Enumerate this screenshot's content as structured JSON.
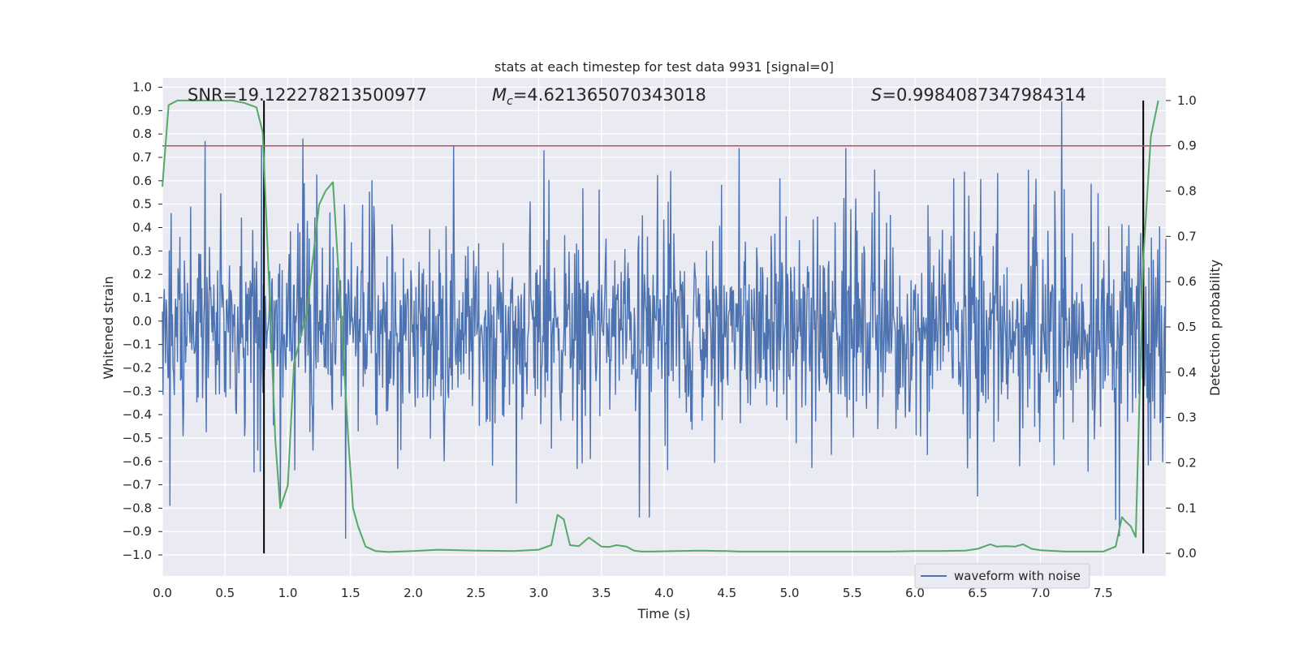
{
  "chart_data": {
    "type": "line",
    "title": "stats at each timestep for test data 9931 [signal=0]",
    "xlabel": "Time (s)",
    "ylabel": "Whitened strain",
    "y2label": "Detection probability",
    "xlim": [
      0.0,
      8.0
    ],
    "ylim": [
      -1.09,
      1.04
    ],
    "y2lim": [
      -0.05,
      1.05
    ],
    "x_ticks": [
      "0.0",
      "0.5",
      "1.0",
      "1.5",
      "2.0",
      "2.5",
      "3.0",
      "3.5",
      "4.0",
      "4.5",
      "5.0",
      "5.5",
      "6.0",
      "6.5",
      "7.0",
      "7.5"
    ],
    "y_ticks": [
      "1.0",
      "0.9",
      "0.8",
      "0.7",
      "0.6",
      "0.5",
      "0.4",
      "0.3",
      "0.2",
      "0.1",
      "0.0",
      "-0.1",
      "-0.2",
      "-0.3",
      "-0.4",
      "-0.5",
      "-0.6",
      "-0.7",
      "-0.8",
      "-0.9",
      "-1.0"
    ],
    "y2_ticks": [
      "1.0",
      "0.9",
      "0.8",
      "0.7",
      "0.6",
      "0.5",
      "0.4",
      "0.3",
      "0.2",
      "0.1",
      "0.0"
    ],
    "grid": true,
    "legend_position": "lower-right",
    "annotations": {
      "snr": "SNR=19.122278213500977",
      "mc_symbol": "M",
      "mc_sub": "c",
      "mc_value": "=4.621365070343018",
      "s_symbol": "S",
      "s_value": "=0.9984087347984314"
    },
    "threshold": {
      "value": 0.9,
      "axis": "right",
      "color": "#c44e52"
    },
    "vertical_markers": [
      0.81,
      7.82
    ],
    "series": [
      {
        "name": "waveform with noise",
        "axis": "left",
        "color": "#4c72b0",
        "envelope_upper_typical": 0.45,
        "envelope_lower_typical": -0.5,
        "peaks": [
          {
            "x": 0.34,
            "y": 0.77
          },
          {
            "x": 0.79,
            "y": 0.75
          },
          {
            "x": 1.12,
            "y": 0.78
          },
          {
            "x": 2.32,
            "y": 0.75
          },
          {
            "x": 3.04,
            "y": 0.73
          },
          {
            "x": 4.6,
            "y": 0.74
          },
          {
            "x": 5.45,
            "y": 0.74
          },
          {
            "x": 7.17,
            "y": 0.94
          },
          {
            "x": 7.82,
            "y": 0.87
          }
        ],
        "troughs": [
          {
            "x": 0.06,
            "y": -0.79
          },
          {
            "x": 0.94,
            "y": -0.8
          },
          {
            "x": 1.46,
            "y": -0.93
          },
          {
            "x": 2.82,
            "y": -0.78
          },
          {
            "x": 3.8,
            "y": -0.84
          },
          {
            "x": 3.88,
            "y": -0.84
          },
          {
            "x": 6.5,
            "y": -0.75
          },
          {
            "x": 7.6,
            "y": -0.85
          },
          {
            "x": 7.63,
            "y": -0.92
          }
        ]
      },
      {
        "name": "detection probability",
        "axis": "right",
        "color": "#55a868",
        "x": [
          0.0,
          0.05,
          0.12,
          0.25,
          0.4,
          0.55,
          0.65,
          0.75,
          0.8,
          0.85,
          0.9,
          0.94,
          1.0,
          1.05,
          1.15,
          1.2,
          1.25,
          1.3,
          1.36,
          1.42,
          1.48,
          1.52,
          1.56,
          1.62,
          1.7,
          1.8,
          2.0,
          2.2,
          2.5,
          2.8,
          3.0,
          3.1,
          3.15,
          3.2,
          3.25,
          3.32,
          3.4,
          3.5,
          3.56,
          3.62,
          3.7,
          3.76,
          3.82,
          3.9,
          4.1,
          4.3,
          4.5,
          4.6,
          4.8,
          5.0,
          5.2,
          5.4,
          5.6,
          5.8,
          6.0,
          6.2,
          6.4,
          6.5,
          6.6,
          6.65,
          6.72,
          6.8,
          6.86,
          6.93,
          7.0,
          7.2,
          7.5,
          7.6,
          7.65,
          7.68,
          7.72,
          7.76,
          7.82,
          7.88,
          7.94
        ],
        "y": [
          0.81,
          0.99,
          1.0,
          1.0,
          1.0,
          1.0,
          0.995,
          0.985,
          0.93,
          0.6,
          0.25,
          0.1,
          0.15,
          0.42,
          0.53,
          0.65,
          0.77,
          0.8,
          0.82,
          0.55,
          0.26,
          0.1,
          0.06,
          0.015,
          0.005,
          0.003,
          0.005,
          0.008,
          0.006,
          0.005,
          0.008,
          0.018,
          0.085,
          0.075,
          0.018,
          0.016,
          0.035,
          0.015,
          0.014,
          0.018,
          0.015,
          0.006,
          0.004,
          0.004,
          0.005,
          0.006,
          0.005,
          0.004,
          0.004,
          0.004,
          0.004,
          0.004,
          0.004,
          0.004,
          0.005,
          0.005,
          0.006,
          0.01,
          0.02,
          0.015,
          0.016,
          0.015,
          0.02,
          0.01,
          0.007,
          0.004,
          0.004,
          0.015,
          0.08,
          0.07,
          0.06,
          0.036,
          0.65,
          0.92,
          1.0
        ]
      }
    ]
  }
}
